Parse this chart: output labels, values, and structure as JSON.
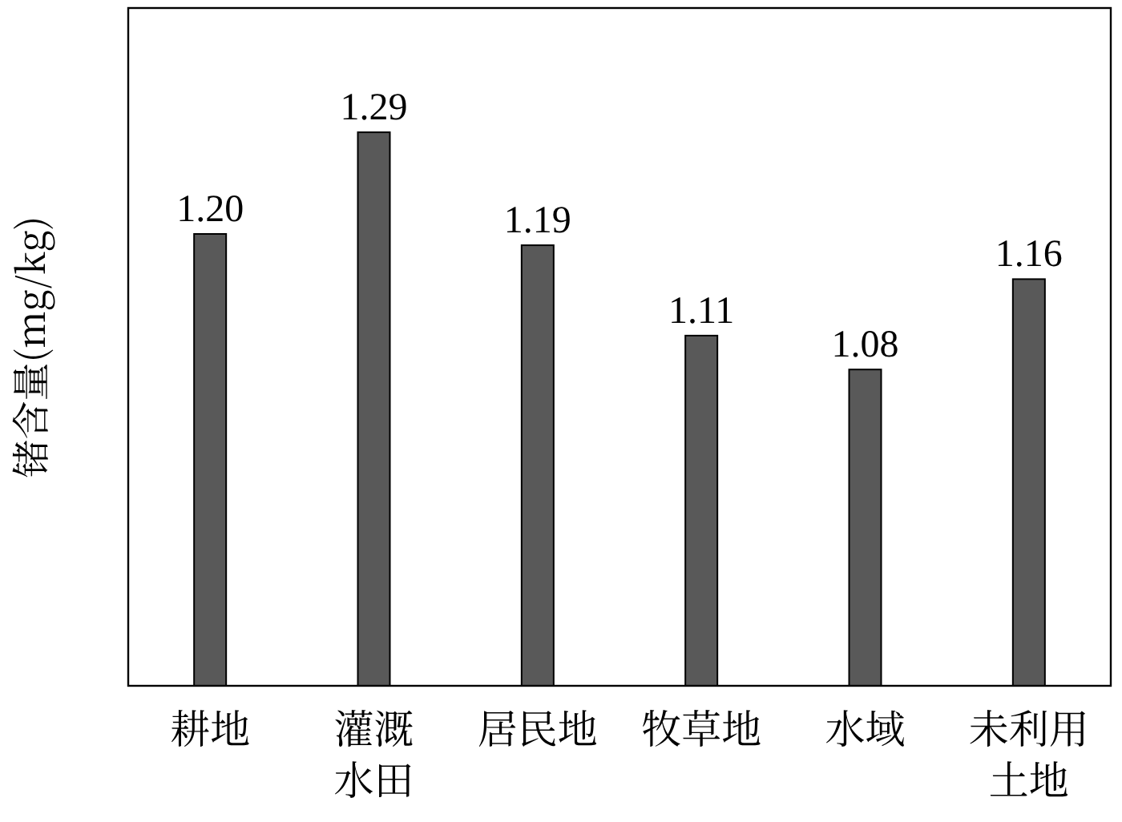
{
  "chart_data": {
    "type": "bar",
    "ylabel": "锗含量(mg/kg)",
    "categories": [
      "耕地",
      "灌溉水田",
      "居民地",
      "牧草地",
      "水域",
      "未利用土地"
    ],
    "values": [
      1.2,
      1.29,
      1.19,
      1.11,
      1.08,
      1.16
    ],
    "value_labels": [
      "1.20",
      "1.29",
      "1.19",
      "1.11",
      "1.08",
      "1.16"
    ],
    "color": "#595959",
    "ylim": [
      0.8,
      1.4
    ],
    "tick_labels": "x"
  }
}
